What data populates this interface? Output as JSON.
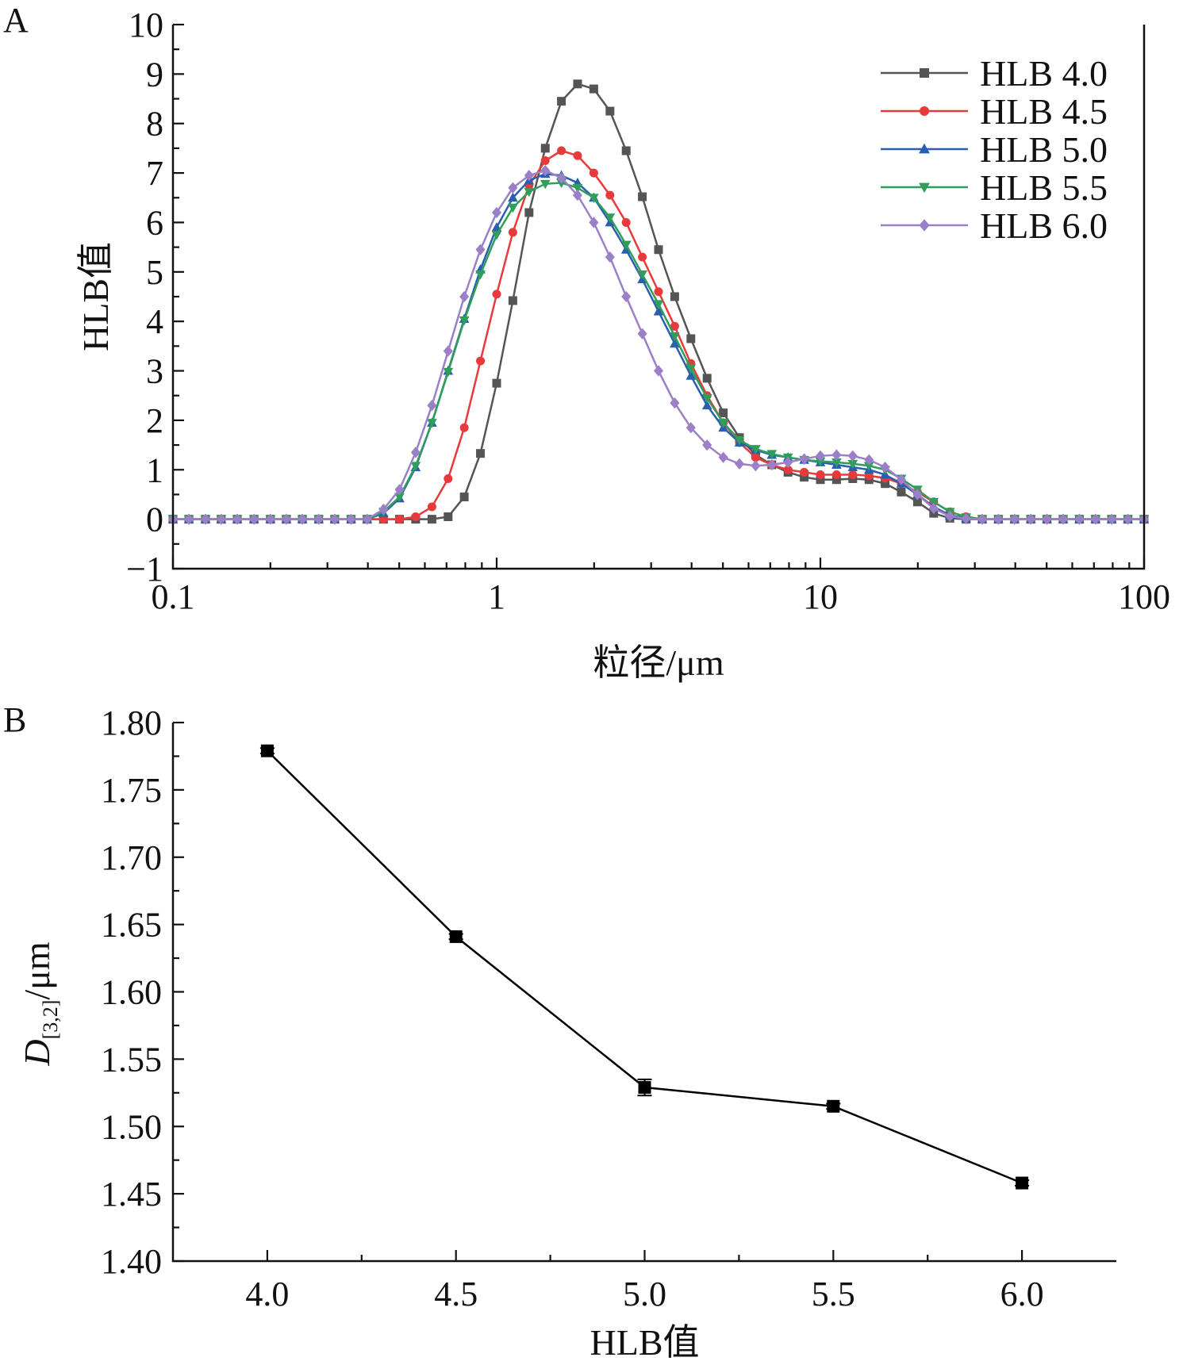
{
  "panels": {
    "A": {
      "label": "A"
    },
    "B": {
      "label": "B"
    }
  },
  "chart_data": [
    {
      "panel": "A",
      "type": "line",
      "xscale": "log",
      "xlabel": "粒径/μm",
      "ylabel": "HLB值",
      "xlim": [
        0.1,
        100
      ],
      "ylim": [
        -1,
        10
      ],
      "x_ticks": [
        0.1,
        1,
        10,
        100
      ],
      "x_tick_labels": [
        "0.1",
        "1",
        "10",
        "100"
      ],
      "y_ticks": [
        -1,
        0,
        1,
        2,
        3,
        4,
        5,
        6,
        7,
        8,
        9,
        10
      ],
      "y_tick_labels": [
        "−1",
        "0",
        "1",
        "2",
        "3",
        "4",
        "5",
        "6",
        "7",
        "8",
        "9",
        "10"
      ],
      "legend_position": "top-right",
      "x": [
        0.1,
        0.112,
        0.126,
        0.141,
        0.158,
        0.178,
        0.2,
        0.224,
        0.251,
        0.282,
        0.316,
        0.355,
        0.398,
        0.447,
        0.501,
        0.562,
        0.631,
        0.708,
        0.794,
        0.891,
        1.0,
        1.122,
        1.259,
        1.413,
        1.585,
        1.778,
        1.995,
        2.239,
        2.512,
        2.818,
        3.162,
        3.548,
        3.981,
        4.467,
        5.012,
        5.623,
        6.31,
        7.079,
        7.943,
        8.913,
        10.0,
        11.22,
        12.59,
        14.13,
        15.85,
        17.78,
        19.95,
        22.39,
        25.12,
        28.18,
        31.62,
        35.48,
        39.81,
        44.67,
        50.12,
        56.23,
        63.1,
        70.79,
        79.43,
        89.13,
        100.0
      ],
      "series": [
        {
          "name": "HLB 4.0",
          "color": "#555555",
          "marker": "square",
          "values": [
            0,
            0,
            0,
            0,
            0,
            0,
            0,
            0,
            0,
            0,
            0,
            0,
            0,
            0,
            0,
            0,
            0,
            0.05,
            0.45,
            1.33,
            2.75,
            4.42,
            6.2,
            7.5,
            8.45,
            8.8,
            8.7,
            8.25,
            7.45,
            6.52,
            5.45,
            4.5,
            3.65,
            2.85,
            2.15,
            1.65,
            1.3,
            1.1,
            0.95,
            0.85,
            0.8,
            0.8,
            0.82,
            0.8,
            0.72,
            0.55,
            0.35,
            0.12,
            0.02,
            0,
            0,
            0,
            0,
            0,
            0,
            0,
            0,
            0,
            0,
            0,
            0
          ]
        },
        {
          "name": "HLB 4.5",
          "color": "#e83a3a",
          "marker": "circle",
          "values": [
            0,
            0,
            0,
            0,
            0,
            0,
            0,
            0,
            0,
            0,
            0,
            0,
            0,
            0,
            0,
            0.05,
            0.25,
            0.82,
            1.85,
            3.2,
            4.55,
            5.8,
            6.75,
            7.25,
            7.45,
            7.35,
            7.0,
            6.55,
            6.0,
            5.3,
            4.6,
            3.9,
            3.15,
            2.5,
            1.95,
            1.55,
            1.25,
            1.1,
            1.0,
            0.95,
            0.9,
            0.9,
            0.9,
            0.88,
            0.83,
            0.72,
            0.55,
            0.35,
            0.15,
            0.05,
            0,
            0,
            0,
            0,
            0,
            0,
            0,
            0,
            0,
            0,
            0
          ]
        },
        {
          "name": "HLB 5.0",
          "color": "#2a5fb0",
          "marker": "triangle-up",
          "values": [
            0,
            0,
            0,
            0,
            0,
            0,
            0,
            0,
            0,
            0,
            0,
            0,
            0,
            0.12,
            0.42,
            1.05,
            1.95,
            3.0,
            4.05,
            5.05,
            5.9,
            6.5,
            6.85,
            6.98,
            6.95,
            6.8,
            6.5,
            6.0,
            5.45,
            4.85,
            4.2,
            3.55,
            2.9,
            2.3,
            1.85,
            1.55,
            1.4,
            1.3,
            1.25,
            1.2,
            1.15,
            1.1,
            1.05,
            1.0,
            0.9,
            0.72,
            0.5,
            0.25,
            0.08,
            0.02,
            0,
            0,
            0,
            0,
            0,
            0,
            0,
            0,
            0,
            0,
            0
          ]
        },
        {
          "name": "HLB 5.5",
          "color": "#2e9e5a",
          "marker": "triangle-down",
          "values": [
            0,
            0,
            0,
            0,
            0,
            0,
            0,
            0,
            0,
            0,
            0,
            0,
            0,
            0.15,
            0.45,
            1.08,
            1.95,
            2.98,
            4.02,
            4.95,
            5.75,
            6.3,
            6.62,
            6.78,
            6.8,
            6.7,
            6.5,
            6.1,
            5.55,
            4.95,
            4.35,
            3.7,
            3.05,
            2.45,
            1.95,
            1.6,
            1.42,
            1.32,
            1.25,
            1.2,
            1.17,
            1.15,
            1.12,
            1.08,
            1.0,
            0.82,
            0.6,
            0.35,
            0.15,
            0.04,
            0,
            0,
            0,
            0,
            0,
            0,
            0,
            0,
            0,
            0,
            0
          ]
        },
        {
          "name": "HLB 6.0",
          "color": "#9b80c8",
          "marker": "diamond",
          "values": [
            0,
            0,
            0,
            0,
            0,
            0,
            0,
            0,
            0,
            0,
            0,
            0,
            0,
            0.2,
            0.6,
            1.35,
            2.3,
            3.4,
            4.5,
            5.45,
            6.2,
            6.7,
            6.95,
            7.05,
            6.9,
            6.55,
            6.0,
            5.3,
            4.5,
            3.75,
            3.0,
            2.35,
            1.85,
            1.5,
            1.25,
            1.12,
            1.08,
            1.1,
            1.15,
            1.22,
            1.28,
            1.3,
            1.28,
            1.2,
            1.05,
            0.8,
            0.5,
            0.22,
            0.06,
            0.01,
            0,
            0,
            0,
            0,
            0,
            0,
            0,
            0,
            0,
            0,
            0
          ]
        }
      ]
    },
    {
      "panel": "B",
      "type": "line",
      "xlabel": "HLB值",
      "ylabel_main": "D",
      "ylabel_subscript": "[3,2]",
      "ylabel_unit": "/μm",
      "xlim": [
        3.75,
        6.25
      ],
      "ylim": [
        1.4,
        1.8
      ],
      "x_ticks": [
        4.0,
        4.5,
        5.0,
        5.5,
        6.0
      ],
      "x_tick_labels": [
        "4.0",
        "4.5",
        "5.0",
        "5.5",
        "6.0"
      ],
      "y_ticks": [
        1.4,
        1.45,
        1.5,
        1.55,
        1.6,
        1.65,
        1.7,
        1.75,
        1.8
      ],
      "y_tick_labels": [
        "1.40",
        "1.45",
        "1.50",
        "1.55",
        "1.60",
        "1.65",
        "1.70",
        "1.75",
        "1.80"
      ],
      "series": [
        {
          "name": "",
          "color": "#000000",
          "marker": "square",
          "x": [
            4.0,
            4.5,
            5.0,
            5.5,
            6.0
          ],
          "values": [
            1.779,
            1.641,
            1.529,
            1.515,
            1.458
          ],
          "errors": [
            0.002,
            0.002,
            0.006,
            0.002,
            0.002
          ]
        }
      ]
    }
  ]
}
